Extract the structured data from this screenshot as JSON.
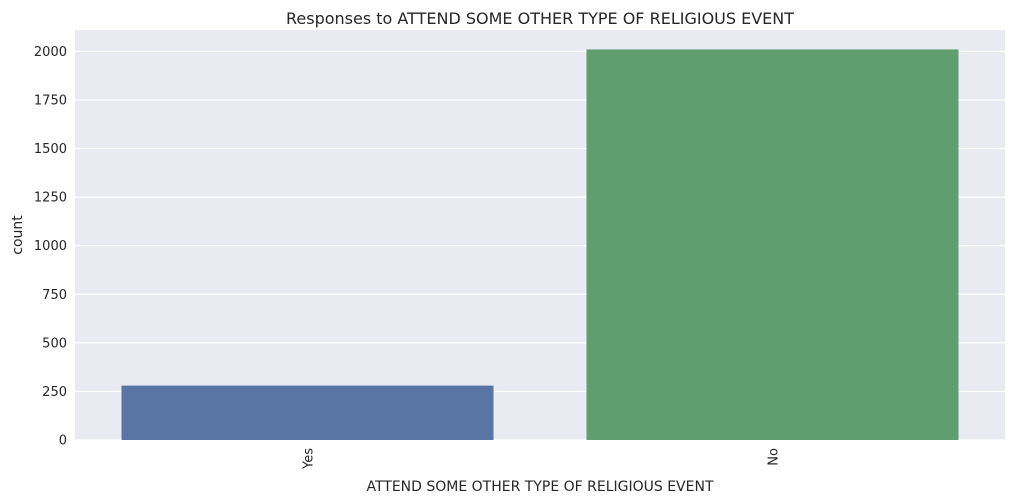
{
  "chart_data": {
    "type": "bar",
    "title": "Responses to ATTEND SOME OTHER TYPE OF RELIGIOUS EVENT",
    "xlabel": "ATTEND SOME OTHER TYPE OF RELIGIOUS EVENT",
    "ylabel": "count",
    "categories": [
      "Yes",
      "No"
    ],
    "values": [
      280,
      2010
    ],
    "ylim": [
      0,
      2110
    ],
    "yticks": [
      0,
      250,
      500,
      750,
      1000,
      1250,
      1500,
      1750,
      2000
    ],
    "ytick_labels": [
      "0",
      "250",
      "500",
      "750",
      "1000",
      "1250",
      "1500",
      "1750",
      "2000"
    ],
    "grid": true,
    "x_tick_rotation": "vertical",
    "colors": {
      "plot_background": "#eaeaf2",
      "grid": "#ffffff",
      "bars": [
        "#5975a4",
        "#5f9e6e"
      ],
      "text": "#262626"
    }
  }
}
